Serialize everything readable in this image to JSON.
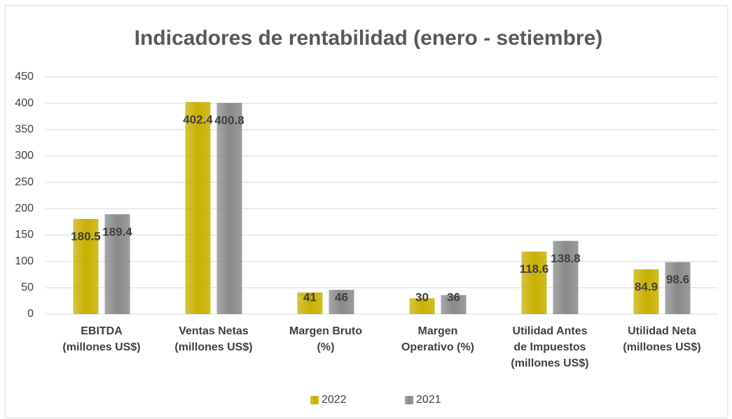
{
  "chart_data": {
    "type": "bar",
    "title": "Indicadores de rentabilidad (enero - setiembre)",
    "categories": [
      [
        "EBITDA",
        "(millones US$)"
      ],
      [
        "Ventas Netas",
        "(millones US$)"
      ],
      [
        "Margen Bruto",
        "(%)"
      ],
      [
        "Margen",
        "Operativo (%)"
      ],
      [
        "Utilidad Antes",
        "de Impuestos",
        "(millones US$)"
      ],
      [
        "Utilidad Neta",
        "(millones US$)"
      ]
    ],
    "series": [
      {
        "name": "2022",
        "color": "#c8b000",
        "values": [
          180.5,
          402.4,
          41,
          30,
          118.6,
          84.9
        ]
      },
      {
        "name": "2021",
        "color": "#8a8a8a",
        "values": [
          189.4,
          400.8,
          46,
          36,
          138.8,
          98.6
        ]
      }
    ],
    "ylim": [
      0,
      450
    ],
    "yticks": [
      0,
      50,
      100,
      150,
      200,
      250,
      300,
      350,
      400,
      450
    ],
    "grid": true,
    "legend": "bottom"
  }
}
